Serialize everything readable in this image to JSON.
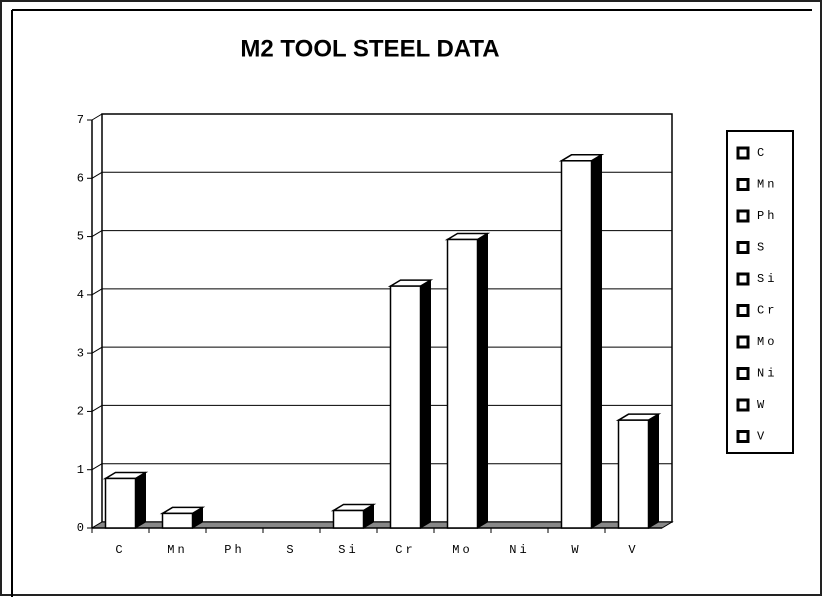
{
  "chart_data": {
    "type": "bar",
    "title": "M2 TOOL STEEL DATA",
    "categories": [
      "C",
      "Mn",
      "Ph",
      "S",
      "Si",
      "Cr",
      "Mo",
      "Ni",
      "W",
      "V"
    ],
    "values": [
      0.85,
      0.25,
      0,
      0,
      0.3,
      4.15,
      4.95,
      0,
      6.3,
      1.85
    ],
    "color": "#ffffff",
    "ylim": [
      0,
      7
    ],
    "yticks": [
      0,
      1,
      2,
      3,
      4,
      5,
      6,
      7
    ],
    "grid": true,
    "legend": "right"
  }
}
